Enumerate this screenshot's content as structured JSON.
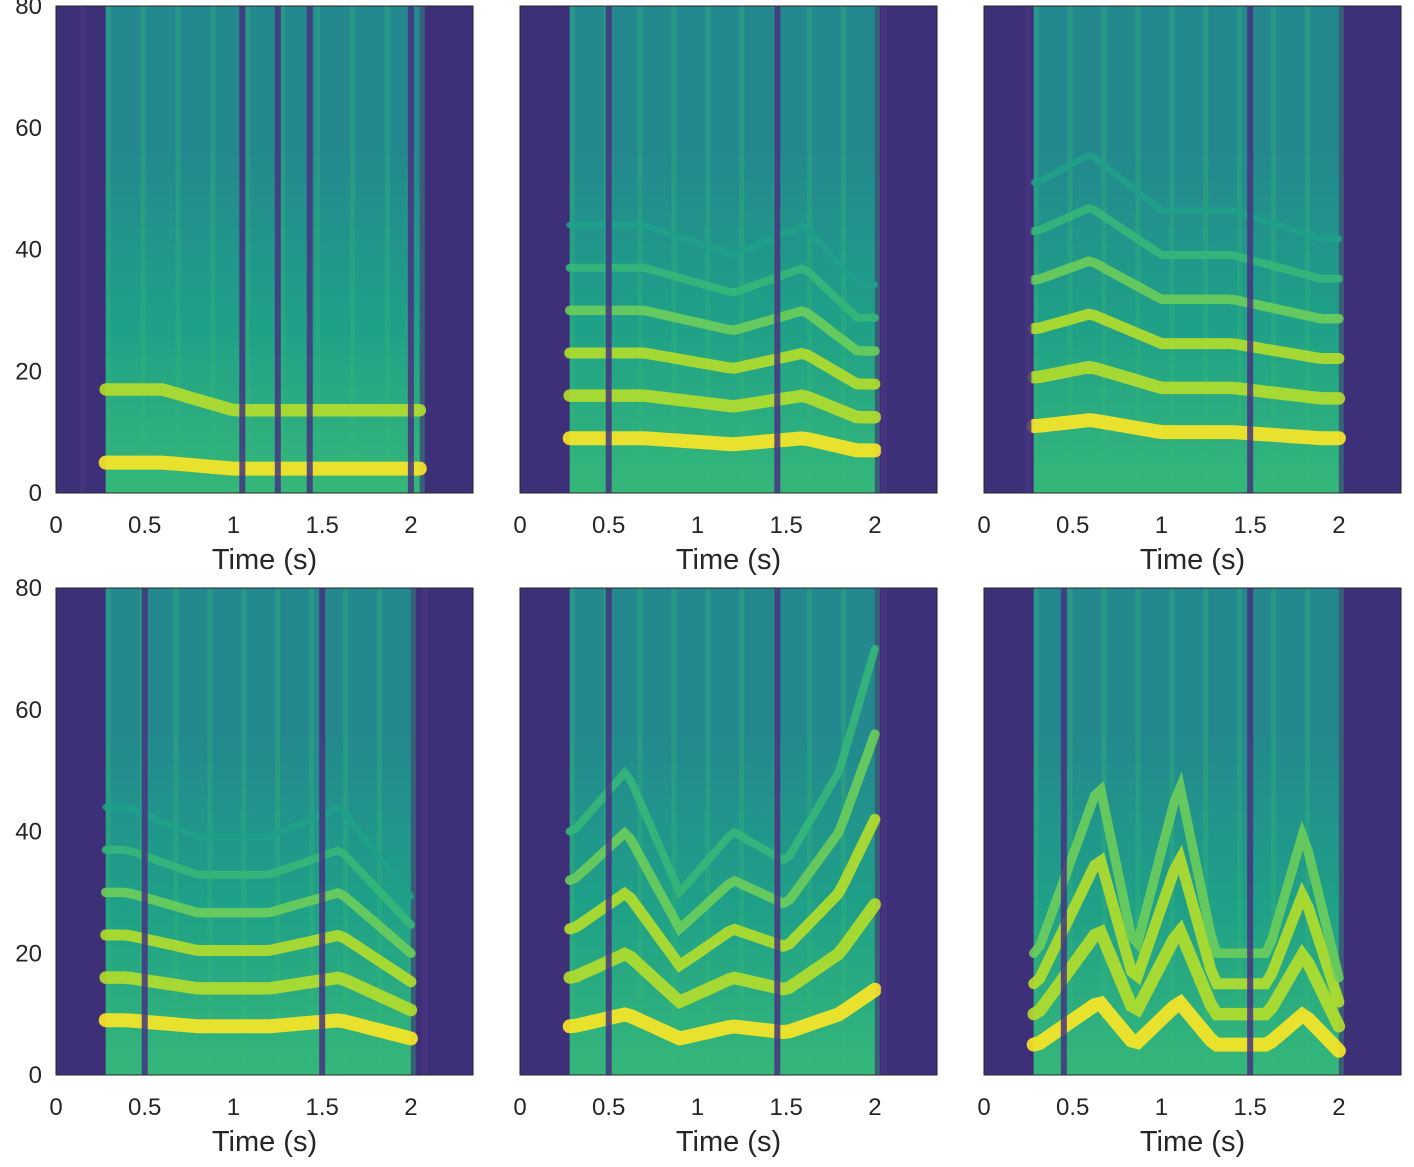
{
  "figure": {
    "colormap": [
      "#3e1a70",
      "#463480",
      "#3b518b",
      "#2c6f8e",
      "#23898e",
      "#1fa088",
      "#35b779",
      "#6ccd5a",
      "#b5de2b",
      "#fde725"
    ],
    "background_color": "#3d2f78"
  },
  "chart_data": [
    {
      "type": "heatmap",
      "panel": "top-left",
      "xlabel": "Time (s)",
      "xlim": [
        0,
        2.35
      ],
      "xticks": [
        "0",
        "0.5",
        "1",
        "1.5",
        "2"
      ],
      "ylabel": "",
      "ylim": [
        0,
        80
      ],
      "yticks": [
        "0",
        "20",
        "40",
        "60",
        "80"
      ],
      "speech_interval": [
        0.28,
        2.05
      ],
      "formants": [
        5,
        17
      ],
      "contour": [
        [
          0.3,
          5
        ],
        [
          0.6,
          5
        ],
        [
          1.0,
          4
        ],
        [
          1.4,
          4
        ],
        [
          1.9,
          4
        ]
      ],
      "silences": [
        0.15,
        1.05,
        1.25,
        1.43,
        2.0
      ]
    },
    {
      "type": "heatmap",
      "panel": "top-middle",
      "xlabel": "Time (s)",
      "xlim": [
        0,
        2.35
      ],
      "xticks": [
        "0",
        "0.5",
        "1",
        "1.5",
        "2"
      ],
      "ylabel": "",
      "ylim": [
        0,
        80
      ],
      "yticks": [],
      "speech_interval": [
        0.28,
        2.0
      ],
      "formants": [
        9,
        16,
        23,
        30,
        37,
        44
      ],
      "contour": [
        [
          0.3,
          9
        ],
        [
          0.7,
          9
        ],
        [
          1.2,
          8
        ],
        [
          1.6,
          9
        ],
        [
          1.9,
          7
        ]
      ],
      "silences": [
        0.5,
        1.45,
        2.05
      ]
    },
    {
      "type": "heatmap",
      "panel": "top-right",
      "xlabel": "Time (s)",
      "xlim": [
        0,
        2.35
      ],
      "xticks": [
        "0",
        "0.5",
        "1",
        "1.5",
        "2"
      ],
      "ylabel": "",
      "ylim": [
        0,
        80
      ],
      "yticks": [],
      "speech_interval": [
        0.28,
        2.0
      ],
      "formants": [
        11,
        19,
        27,
        35,
        43,
        51
      ],
      "contour": [
        [
          0.3,
          11
        ],
        [
          0.6,
          12
        ],
        [
          1.0,
          10
        ],
        [
          1.4,
          10
        ],
        [
          1.9,
          9
        ]
      ],
      "silences": [
        0.25,
        1.5
      ]
    },
    {
      "type": "heatmap",
      "panel": "bottom-left",
      "xlabel": "Time (s)",
      "xlim": [
        0,
        2.35
      ],
      "xticks": [
        "0",
        "0.5",
        "1",
        "1.5",
        "2"
      ],
      "ylabel": "",
      "ylim": [
        0,
        80
      ],
      "yticks": [
        "0",
        "20",
        "40",
        "60",
        "80"
      ],
      "speech_interval": [
        0.28,
        2.0
      ],
      "formants": [
        9,
        16,
        23,
        30,
        37,
        44
      ],
      "contour": [
        [
          0.4,
          9
        ],
        [
          0.8,
          8
        ],
        [
          1.2,
          8
        ],
        [
          1.6,
          9
        ],
        [
          2.0,
          6
        ]
      ],
      "silences": [
        0.5,
        1.5,
        2.08
      ]
    },
    {
      "type": "heatmap",
      "panel": "bottom-middle",
      "xlabel": "Time (s)",
      "xlim": [
        0,
        2.35
      ],
      "xticks": [
        "0",
        "0.5",
        "1",
        "1.5",
        "2"
      ],
      "ylabel": "",
      "ylim": [
        0,
        80
      ],
      "yticks": [],
      "speech_interval": [
        0.28,
        2.0
      ],
      "formants": [
        8,
        16,
        24,
        32,
        40
      ],
      "contour": [
        [
          0.3,
          8
        ],
        [
          0.6,
          10
        ],
        [
          0.9,
          6
        ],
        [
          1.2,
          8
        ],
        [
          1.5,
          7
        ],
        [
          1.8,
          10
        ],
        [
          2.0,
          14
        ]
      ],
      "silences": [
        0.5,
        1.45,
        2.05
      ]
    },
    {
      "type": "heatmap",
      "panel": "bottom-right",
      "xlabel": "Time (s)",
      "xlim": [
        0,
        2.35
      ],
      "xticks": [
        "0",
        "0.5",
        "1",
        "1.5",
        "2"
      ],
      "ylabel": "",
      "ylim": [
        0,
        80
      ],
      "yticks": [],
      "speech_interval": [
        0.28,
        2.0
      ],
      "formants": [
        7,
        14,
        21,
        28
      ],
      "contour": [
        [
          0.3,
          5
        ],
        [
          0.65,
          12
        ],
        [
          0.85,
          5
        ],
        [
          1.1,
          12
        ],
        [
          1.3,
          5
        ],
        [
          1.6,
          5
        ],
        [
          1.8,
          10
        ],
        [
          2.0,
          4
        ]
      ],
      "silences": [
        0.45,
        1.5
      ]
    }
  ]
}
